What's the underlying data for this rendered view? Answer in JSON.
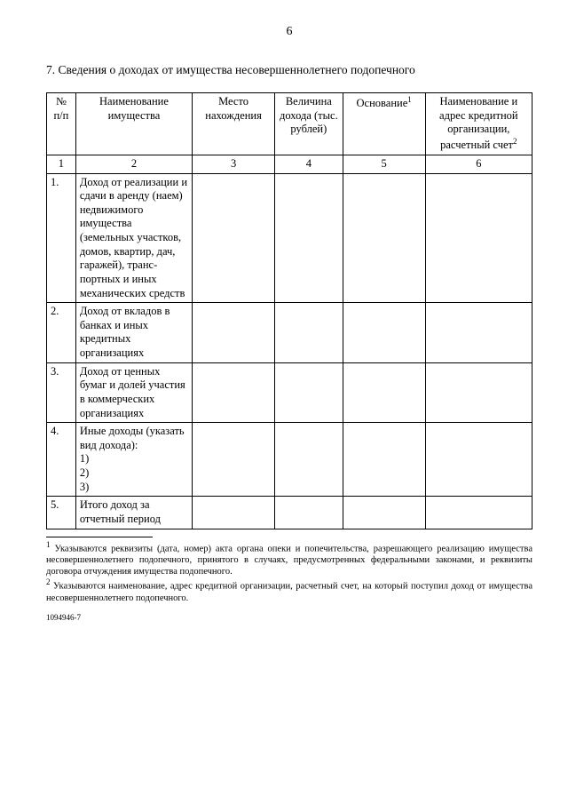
{
  "page_number": "6",
  "section_title": "7. Сведения о доходах от имущества несовершеннолетнего подопечного",
  "table": {
    "columns": [
      {
        "header": "№ п/п",
        "num": "1"
      },
      {
        "header": "Наименование имущества",
        "num": "2"
      },
      {
        "header": "Место нахождения",
        "num": "3"
      },
      {
        "header": "Величина дохода (тыс. рублей)",
        "num": "4"
      },
      {
        "header_html": "Основание<sup>1</sup>",
        "num": "5"
      },
      {
        "header_html": "Наименование и адрес кредитной организации, расчетный счет<sup>2</sup>",
        "num": "6"
      }
    ],
    "rows": [
      {
        "idx": "1.",
        "name": "Доход от реали­зации и сдачи в аренду (наем) недвижимого имущества (земельных участков, домов, квартир, дач, га­ражей), транс­портных и иных механических средств"
      },
      {
        "idx": "2.",
        "name": "Доход от вкладов в банках и иных кредитных организациях"
      },
      {
        "idx": "3.",
        "name": "Доход от ценных бумаг и долей участия в коммерческих организациях"
      },
      {
        "idx": "4.",
        "name": "Иные доходы (указать вид дохода):\n1)\n2)\n3)"
      },
      {
        "idx": "5.",
        "name": "Итого доход за отчетный период"
      }
    ]
  },
  "footnotes": {
    "f1_html": "<sup>1</sup> Указываются реквизиты (дата, номер) акта органа опеки и попечительства, разрешающего реализацию имущества несовершеннолетнего подопечного, принятого в случаях, предусмотренных федеральными законами, и реквизиты договора отчуждения имущества подопечного.",
    "f2_html": "<sup>2</sup> Указываются наименование, адрес кредитной организации, расчетный счет, на который поступил доход от имущества несовершеннолетнего подопечного."
  },
  "doc_id": "1094946-7"
}
